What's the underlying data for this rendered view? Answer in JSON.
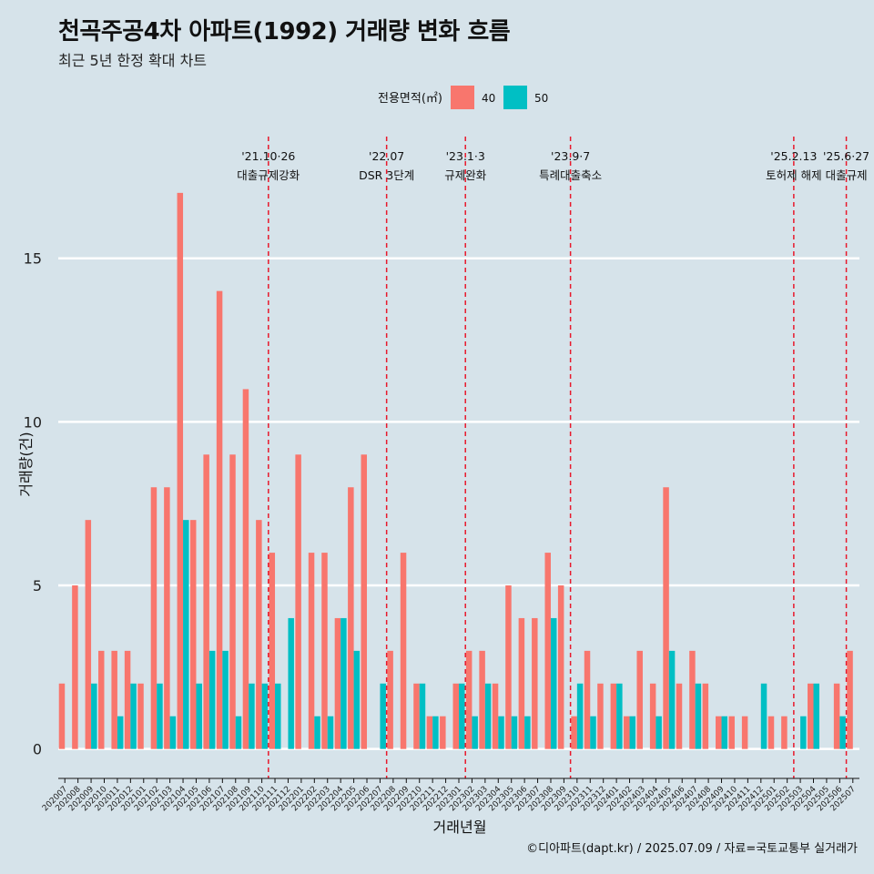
{
  "chart_data": {
    "type": "bar",
    "title": "천곡주공4차 아파트(1992) 거래량 변화 흐름",
    "subtitle": "최근 5년 한정 확대 차트",
    "xlabel": "거래년월",
    "ylabel": "거래량(건)",
    "caption": "©디아파트(dapt.kr) / 2025.07.09 / 자료=국토교통부 실거래가",
    "legend_title": "전용면적(㎡)",
    "legend_position": "top",
    "ylim": [
      -0.9,
      19
    ],
    "yticks": [
      0,
      5,
      10,
      15
    ],
    "colors": {
      "40": "#f8766d",
      "50": "#00bfc4"
    },
    "categories": [
      "202007",
      "202008",
      "202009",
      "202010",
      "202011",
      "202012",
      "202101",
      "202102",
      "202103",
      "202104",
      "202105",
      "202106",
      "202107",
      "202108",
      "202109",
      "202110",
      "202111",
      "202112",
      "202201",
      "202202",
      "202203",
      "202204",
      "202205",
      "202206",
      "202207",
      "202208",
      "202209",
      "202210",
      "202211",
      "202212",
      "202301",
      "202302",
      "202303",
      "202304",
      "202305",
      "202306",
      "202307",
      "202308",
      "202309",
      "202310",
      "202311",
      "202312",
      "202401",
      "202402",
      "202403",
      "202404",
      "202405",
      "202406",
      "202407",
      "202408",
      "202409",
      "202410",
      "202411",
      "202412",
      "202501",
      "202502",
      "202503",
      "202504",
      "202505",
      "202506",
      "202507"
    ],
    "series": [
      {
        "name": "40",
        "values": [
          2,
          5,
          7,
          3,
          3,
          3,
          2,
          8,
          8,
          17,
          7,
          9,
          14,
          9,
          11,
          7,
          6,
          0,
          9,
          6,
          6,
          4,
          8,
          9,
          0,
          3,
          6,
          2,
          1,
          1,
          2,
          3,
          3,
          2,
          5,
          4,
          4,
          6,
          5,
          1,
          3,
          2,
          2,
          1,
          3,
          2,
          8,
          2,
          3,
          2,
          1,
          1,
          1,
          0,
          1,
          1,
          0,
          2,
          0,
          2,
          3
        ]
      },
      {
        "name": "50",
        "values": [
          0,
          0,
          2,
          0,
          1,
          2,
          0,
          2,
          1,
          7,
          2,
          3,
          3,
          1,
          2,
          2,
          2,
          4,
          0,
          1,
          1,
          4,
          3,
          0,
          2,
          0,
          0,
          2,
          1,
          0,
          2,
          1,
          2,
          1,
          1,
          1,
          0,
          4,
          0,
          2,
          1,
          0,
          2,
          1,
          0,
          1,
          3,
          0,
          2,
          0,
          1,
          0,
          0,
          2,
          0,
          0,
          1,
          2,
          0,
          1,
          0
        ]
      }
    ],
    "events": [
      {
        "index": 15.5,
        "date": "'21.10·26",
        "label": "대출규제강화"
      },
      {
        "index": 24.5,
        "date": "'22.07",
        "label": "DSR 3단계"
      },
      {
        "index": 30.5,
        "date": "'23.1·3",
        "label": "규제완화"
      },
      {
        "index": 38.5,
        "date": "'23.9·7",
        "label": "특례대출축소"
      },
      {
        "index": 55.5,
        "date": "'25.2.13",
        "label": "토허제 해제"
      },
      {
        "index": 59.5,
        "date": "'25.6·27",
        "label": "대출규제"
      }
    ]
  }
}
